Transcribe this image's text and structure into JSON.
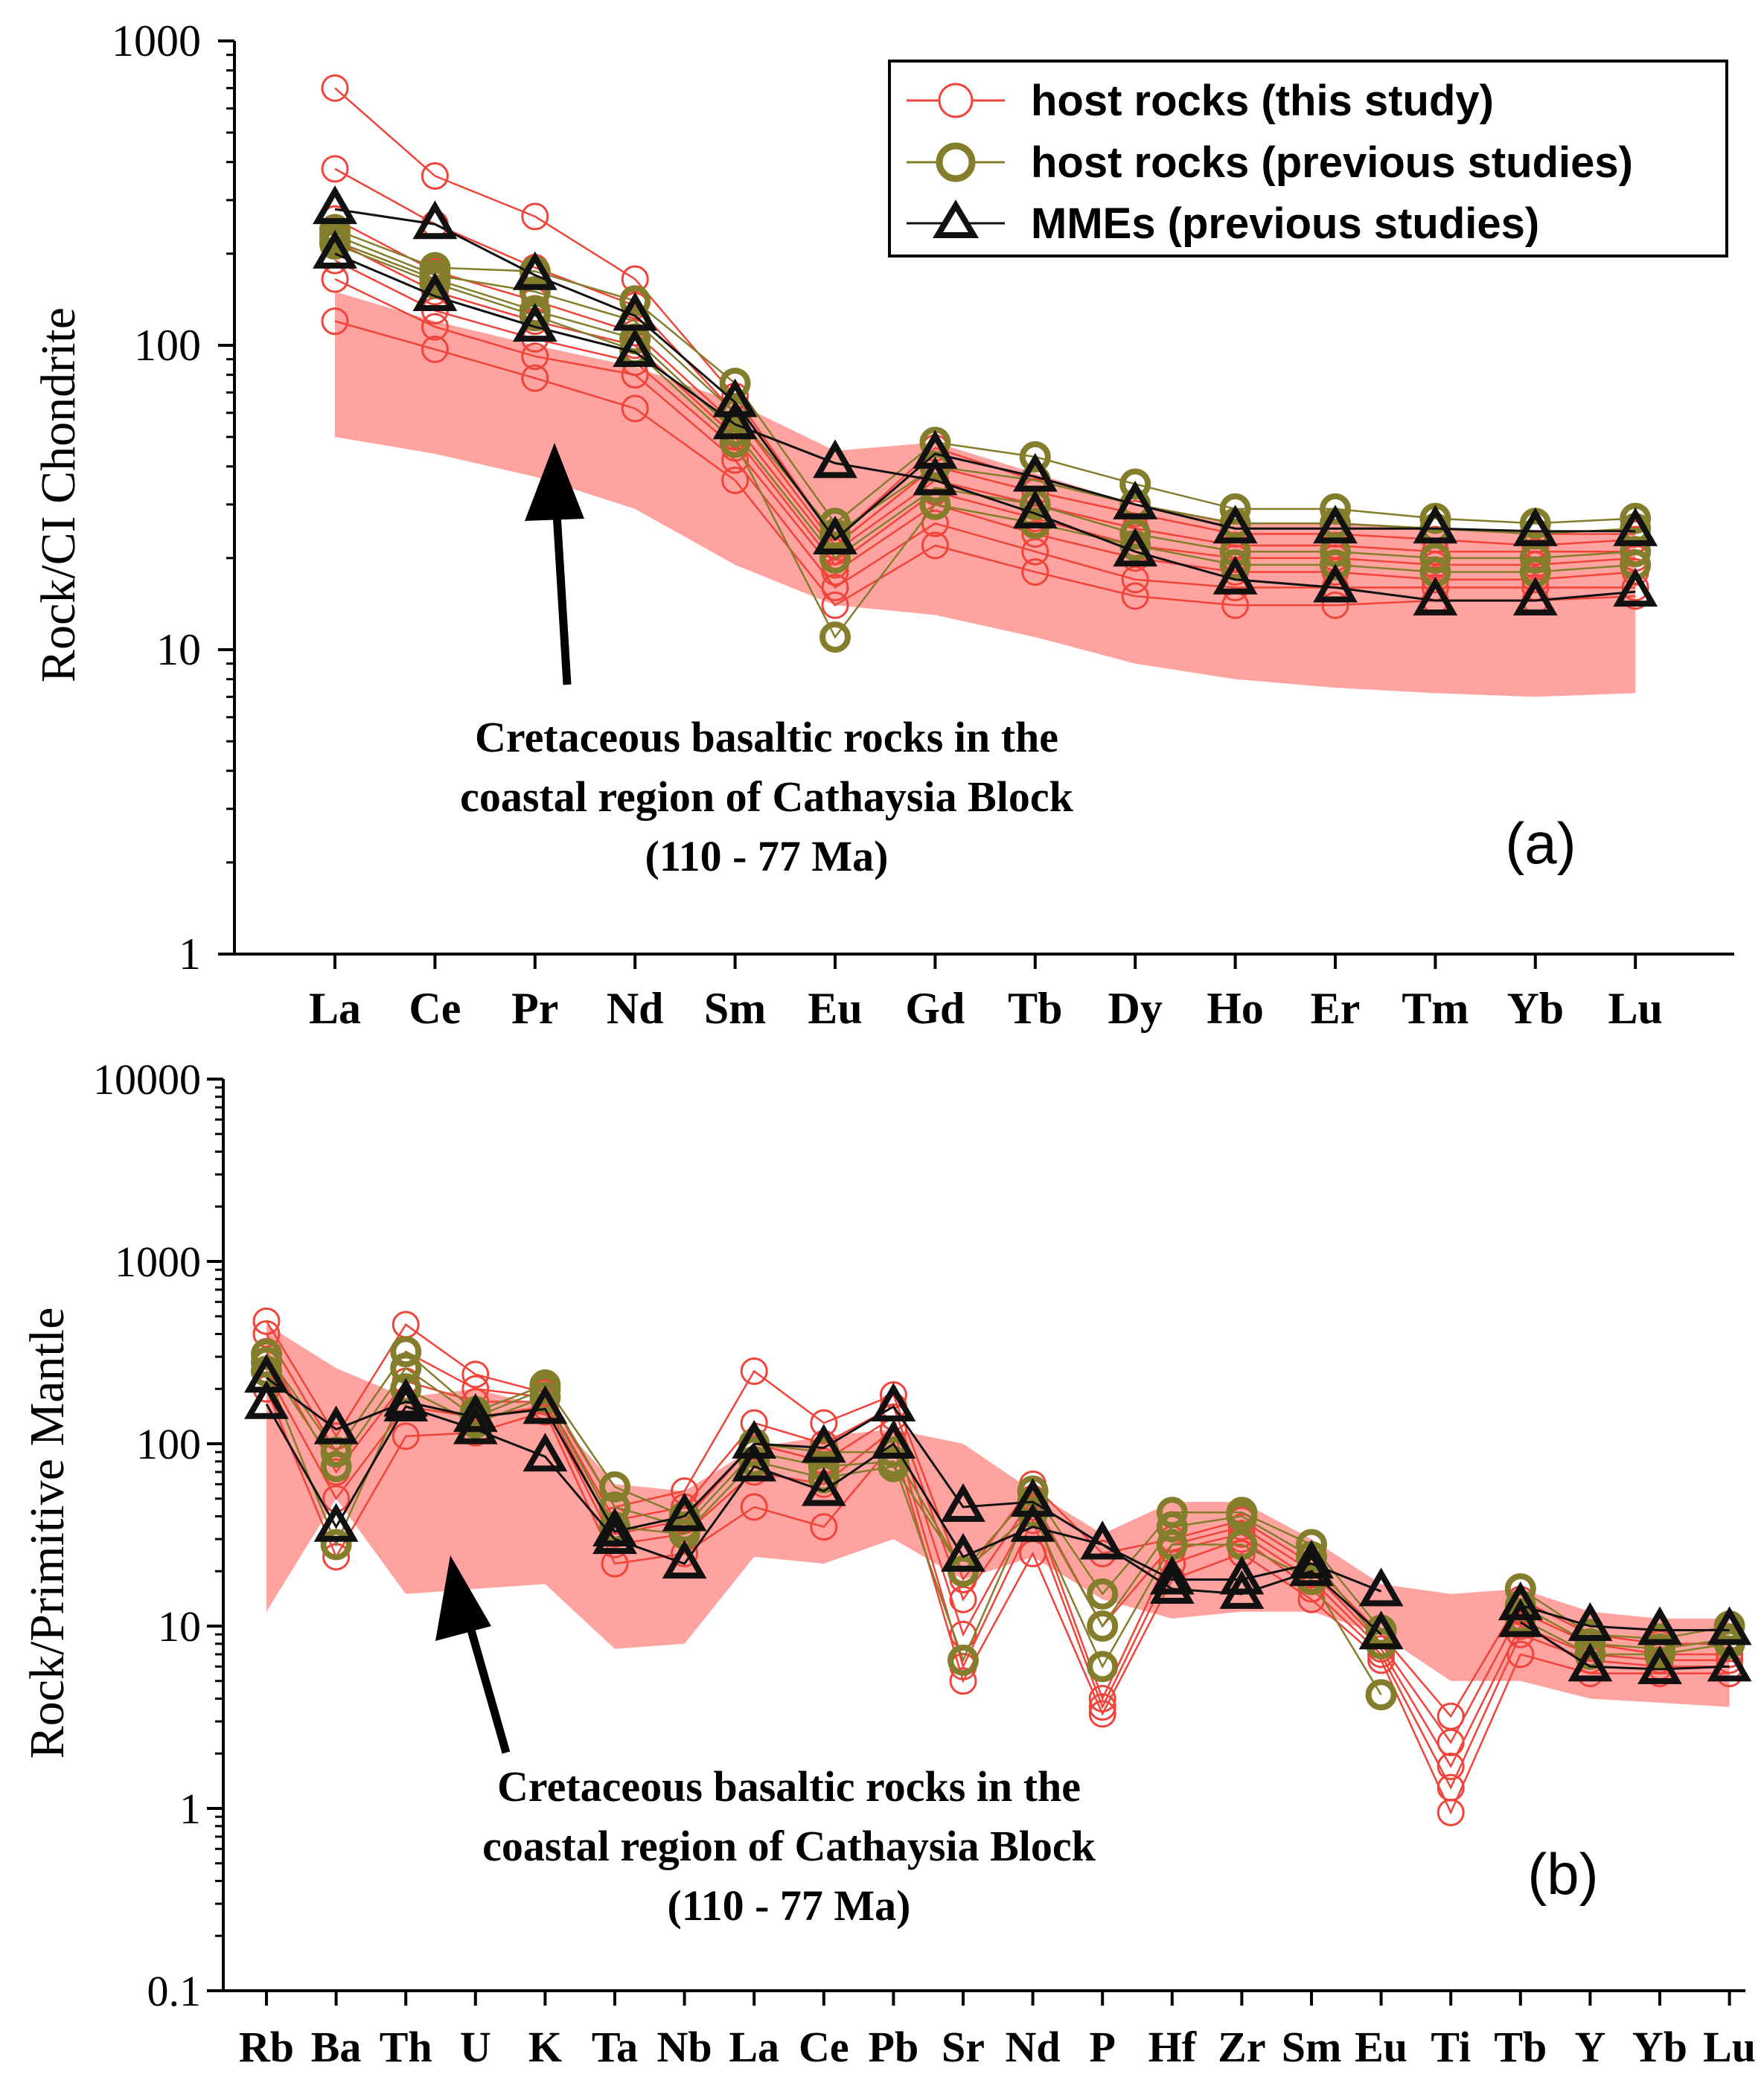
{
  "colors": {
    "this_study": "#f0443a",
    "previous": "#847d2b",
    "mme": "#111111",
    "band": "#ffa3a0",
    "axis": "#000000"
  },
  "legend": {
    "items": [
      {
        "label": "host rocks (this study)",
        "marker": "open-circle-red"
      },
      {
        "label": "host rocks (previous studies)",
        "marker": "open-circle-olive"
      },
      {
        "label": "MMEs (previous studies)",
        "marker": "open-triangle-black"
      }
    ]
  },
  "chart_data": [
    {
      "id": "a",
      "type": "line",
      "scale": "log",
      "panel_label": "(a)",
      "ylabel": "Rock/CI Chondrite",
      "ylim": [
        1,
        1000
      ],
      "ytick_labels": [
        "1",
        "10",
        "100",
        "1000"
      ],
      "ytick_values": [
        1,
        10,
        100,
        1000
      ],
      "categories": [
        "La",
        "Ce",
        "Pr",
        "Nd",
        "Sm",
        "Eu",
        "Gd",
        "Tb",
        "Dy",
        "Ho",
        "Er",
        "Tm",
        "Yb",
        "Lu"
      ],
      "band": {
        "label_lines": [
          "Cretaceous basaltic rocks in the",
          "coastal region of Cathaysia Block",
          "(110 - 77 Ma)"
        ],
        "upper": [
          150,
          120,
          100,
          85,
          65,
          45,
          48,
          38,
          30,
          26,
          26,
          25,
          24,
          24
        ],
        "lower": [
          50,
          44,
          37,
          29,
          19,
          14,
          13,
          11,
          9,
          8,
          7.5,
          7.2,
          7,
          7.2
        ]
      },
      "series": [
        {
          "group": "this_study",
          "values": [
            700,
            360,
            265,
            165,
            68,
            23,
            46,
            36,
            30,
            26,
            26,
            25,
            24,
            24
          ]
        },
        {
          "group": "this_study",
          "values": [
            380,
            250,
            180,
            135,
            60,
            22,
            40,
            33,
            28,
            24,
            24,
            23,
            22,
            23
          ]
        },
        {
          "group": "this_study",
          "values": [
            260,
            175,
            140,
            110,
            55,
            21,
            36,
            30,
            25,
            22,
            22,
            21,
            21,
            21
          ]
        },
        {
          "group": "this_study",
          "values": [
            220,
            150,
            120,
            100,
            50,
            19,
            33,
            27,
            22,
            20,
            20,
            19,
            19,
            20
          ]
        },
        {
          "group": "this_study",
          "values": [
            190,
            130,
            105,
            88,
            46,
            18,
            30,
            24,
            20,
            18,
            18,
            17,
            17,
            18
          ]
        },
        {
          "group": "this_study",
          "values": [
            165,
            115,
            92,
            80,
            42,
            16,
            26,
            21,
            17,
            16,
            16,
            16,
            16,
            16
          ]
        },
        {
          "group": "this_study",
          "values": [
            120,
            97,
            78,
            62,
            36,
            14,
            22,
            18,
            15,
            14,
            14,
            14.5,
            14.5,
            15
          ]
        },
        {
          "group": "previous",
          "values": [
            240,
            180,
            175,
            140,
            75,
            26,
            48,
            43,
            35,
            29,
            29,
            27,
            26,
            27
          ]
        },
        {
          "group": "previous",
          "values": [
            230,
            170,
            150,
            120,
            60,
            24,
            40,
            36,
            30,
            26,
            26,
            25,
            24,
            25
          ]
        },
        {
          "group": "previous",
          "values": [
            220,
            165,
            130,
            105,
            52,
            20,
            34,
            30,
            24,
            21,
            21,
            20,
            20,
            21
          ]
        },
        {
          "group": "previous",
          "values": [
            215,
            160,
            125,
            96,
            48,
            11,
            30,
            26,
            22,
            19,
            19,
            18,
            18,
            19
          ]
        },
        {
          "group": "mme",
          "values": [
            280,
            250,
            170,
            125,
            65,
            23,
            44,
            37,
            30,
            25,
            25,
            25,
            24.5,
            24.5
          ]
        },
        {
          "group": "mme",
          "values": [
            200,
            145,
            115,
            95,
            55,
            41,
            36,
            28,
            21,
            17,
            16,
            14.5,
            14.5,
            15.5
          ]
        }
      ]
    },
    {
      "id": "b",
      "type": "line",
      "scale": "log",
      "panel_label": "(b)",
      "ylabel": "Rock/Primitive Mantle",
      "ylim": [
        0.1,
        10000
      ],
      "ytick_labels": [
        "0.1",
        "1",
        "10",
        "100",
        "1000",
        "10000"
      ],
      "ytick_values": [
        0.1,
        1,
        10,
        100,
        1000,
        10000
      ],
      "categories": [
        "Rb",
        "Ba",
        "Th",
        "U",
        "K",
        "Ta",
        "Nb",
        "La",
        "Ce",
        "Pb",
        "Sr",
        "Nd",
        "P",
        "Hf",
        "Zr",
        "Sm",
        "Eu",
        "Ti",
        "Tb",
        "Y",
        "Yb",
        "Lu"
      ],
      "band": {
        "label_lines": [
          "Cretaceous basaltic rocks in the",
          "coastal region of Cathaysia Block",
          "(110 - 77 Ma)"
        ],
        "upper": [
          450,
          260,
          180,
          200,
          160,
          60,
          55,
          95,
          110,
          120,
          100,
          55,
          32,
          48,
          48,
          30,
          17,
          15,
          16,
          12,
          11,
          11
        ],
        "lower": [
          12,
          50,
          15,
          16,
          17,
          7.5,
          8,
          24,
          22,
          30,
          18,
          24,
          14,
          11,
          12,
          12,
          9,
          5,
          5,
          4,
          3.8,
          3.6
        ]
      },
      "series": [
        {
          "group": "this_study",
          "values": [
            470,
            110,
            450,
            240,
            190,
            45,
            55,
            250,
            130,
            185,
            18,
            60,
            25,
            30,
            38,
            22,
            9,
            3.2,
            14,
            9,
            8,
            8
          ]
        },
        {
          "group": "this_study",
          "values": [
            400,
            90,
            320,
            200,
            180,
            38,
            45,
            130,
            100,
            160,
            14,
            50,
            10,
            28,
            35,
            20,
            8,
            2.3,
            12,
            8,
            7,
            7
          ]
        },
        {
          "group": "this_study",
          "values": [
            320,
            70,
            220,
            170,
            170,
            32,
            38,
            100,
            80,
            140,
            9,
            45,
            4,
            26,
            32,
            18,
            7.5,
            1.7,
            10,
            7,
            6.5,
            6.5
          ]
        },
        {
          "group": "this_study",
          "values": [
            250,
            50,
            160,
            140,
            160,
            28,
            32,
            70,
            60,
            120,
            6,
            38,
            3.6,
            22,
            30,
            16,
            7,
            1.3,
            9,
            6.5,
            6,
            6
          ]
        },
        {
          "group": "this_study",
          "values": [
            200,
            24,
            110,
            115,
            150,
            22,
            25,
            45,
            35,
            100,
            5,
            25,
            3.3,
            18,
            25,
            14,
            6.5,
            0.95,
            7,
            5.5,
            5.5,
            5.5
          ]
        },
        {
          "group": "previous",
          "values": [
            310,
            90,
            320,
            150,
            210,
            58,
            40,
            100,
            90,
            90,
            20,
            55,
            15,
            42,
            42,
            28,
            9.5,
            null,
            16,
            9,
            8.5,
            10
          ]
        },
        {
          "group": "previous",
          "values": [
            280,
            75,
            260,
            140,
            200,
            45,
            35,
            90,
            75,
            80,
            6.5,
            48,
            10,
            35,
            40,
            24,
            8,
            null,
            13,
            8,
            7.5,
            8.5
          ]
        },
        {
          "group": "previous",
          "values": [
            250,
            28,
            200,
            130,
            180,
            35,
            32,
            80,
            65,
            75,
            20,
            42,
            6,
            28,
            28,
            18,
            4.2,
            null,
            11,
            7,
            7,
            8
          ]
        },
        {
          "group": "mme",
          "values": [
            230,
            120,
            170,
            140,
            155,
            33,
            40,
            100,
            95,
            160,
            45,
            48,
            28,
            18,
            18,
            22,
            15.5,
            null,
            13,
            10,
            9.5,
            9.5
          ]
        },
        {
          "group": "mme",
          "values": [
            165,
            35,
            160,
            120,
            85,
            30,
            22,
            75,
            55,
            100,
            24,
            35,
            28,
            16,
            15,
            20,
            9,
            null,
            10.5,
            6,
            5.8,
            6
          ]
        }
      ]
    }
  ]
}
